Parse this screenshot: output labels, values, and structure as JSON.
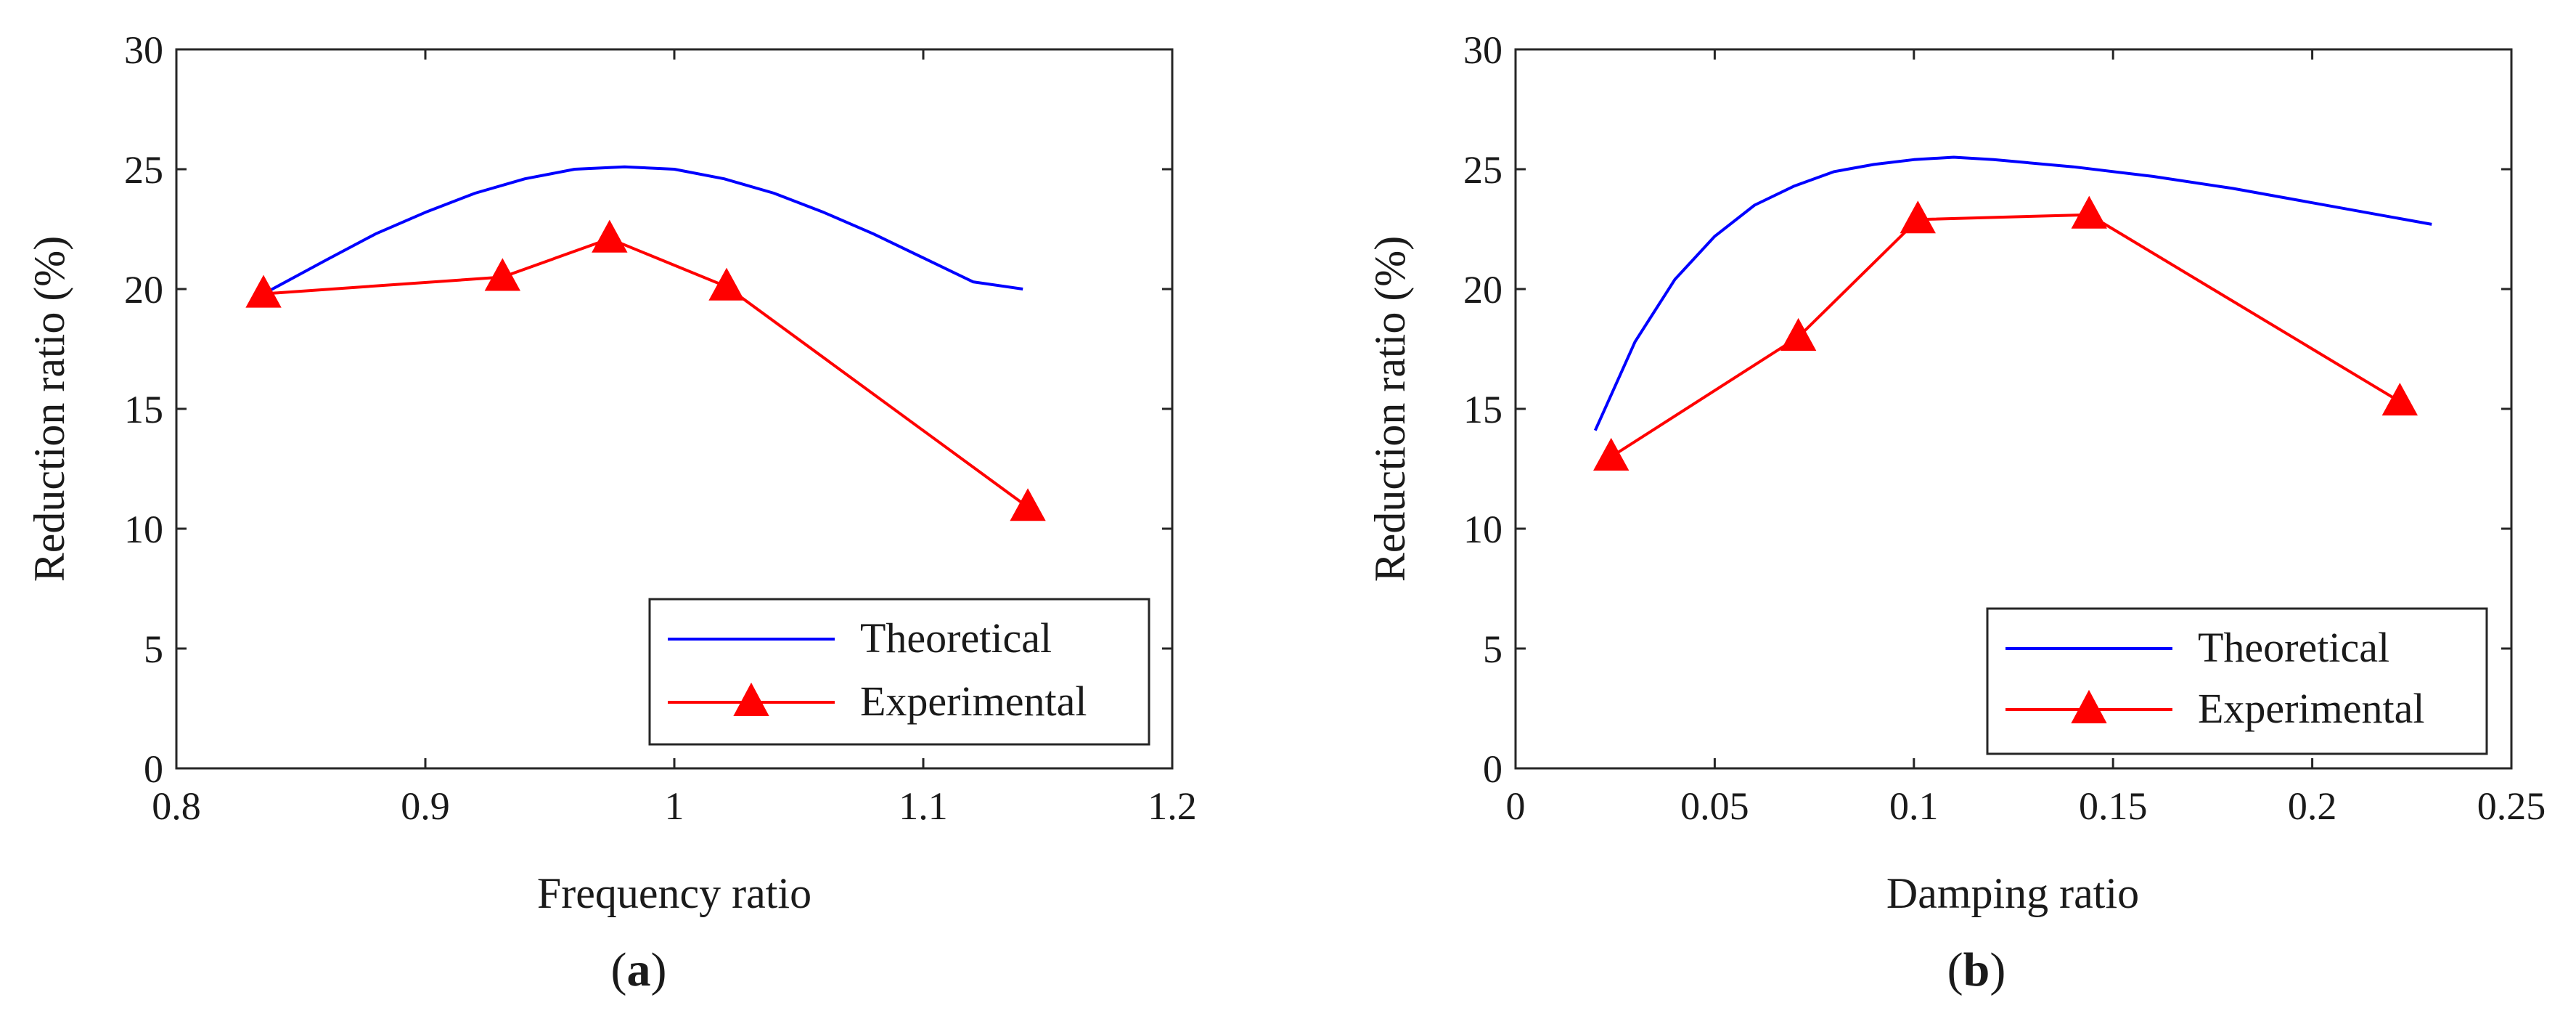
{
  "colors": {
    "theoretical": "#0000ff",
    "experimental": "#ff0000",
    "axis": "#262626"
  },
  "panels": [
    {
      "label_open": "(",
      "label_letter": "a",
      "label_close": ")"
    },
    {
      "label_open": "(",
      "label_letter": "b",
      "label_close": ")"
    }
  ],
  "chart_data": [
    {
      "type": "line",
      "title": "",
      "xlabel": "Frequency ratio",
      "ylabel": "Reduction ratio (%)",
      "xlim": [
        0.8,
        1.2
      ],
      "ylim": [
        0,
        30
      ],
      "xticks": [
        0.8,
        0.9,
        1,
        1.1,
        1.2
      ],
      "xtick_labels": [
        "0.8",
        "0.9",
        "1",
        "1.1",
        "1.2"
      ],
      "yticks": [
        0,
        5,
        10,
        15,
        20,
        25,
        30
      ],
      "ytick_labels": [
        "0",
        "5",
        "10",
        "15",
        "20",
        "25",
        "30"
      ],
      "legend_position": "bottom-right",
      "series": [
        {
          "name": "Theoretical",
          "marker": "none",
          "x": [
            0.835,
            0.86,
            0.88,
            0.9,
            0.92,
            0.94,
            0.96,
            0.98,
            1.0,
            1.02,
            1.04,
            1.06,
            1.08,
            1.1,
            1.12,
            1.14
          ],
          "y": [
            19.8,
            21.2,
            22.3,
            23.2,
            24.0,
            24.6,
            25.0,
            25.1,
            25.0,
            24.6,
            24.0,
            23.2,
            22.3,
            21.3,
            20.3,
            20.0
          ]
        },
        {
          "name": "Experimental",
          "marker": "triangle",
          "x": [
            0.835,
            0.931,
            0.974,
            1.021,
            1.142
          ],
          "y": [
            19.8,
            20.5,
            22.1,
            20.1,
            10.9
          ]
        }
      ]
    },
    {
      "type": "line",
      "title": "",
      "xlabel": "Damping ratio",
      "ylabel": "Reduction ratio (%)",
      "xlim": [
        0,
        0.25
      ],
      "ylim": [
        0,
        30
      ],
      "xticks": [
        0,
        0.05,
        0.1,
        0.15,
        0.2,
        0.25
      ],
      "xtick_labels": [
        "0",
        "0.05",
        "0.1",
        "0.15",
        "0.2",
        "0.25"
      ],
      "yticks": [
        0,
        5,
        10,
        15,
        20,
        25,
        30
      ],
      "ytick_labels": [
        "0",
        "5",
        "10",
        "15",
        "20",
        "25",
        "30"
      ],
      "legend_position": "bottom-right",
      "series": [
        {
          "name": "Theoretical",
          "marker": "none",
          "x": [
            0.02,
            0.03,
            0.04,
            0.05,
            0.06,
            0.07,
            0.08,
            0.09,
            0.1,
            0.11,
            0.12,
            0.14,
            0.16,
            0.18,
            0.2,
            0.23
          ],
          "y": [
            14.1,
            17.8,
            20.4,
            22.2,
            23.5,
            24.3,
            24.9,
            25.2,
            25.4,
            25.5,
            25.4,
            25.1,
            24.7,
            24.2,
            23.6,
            22.7
          ]
        },
        {
          "name": "Experimental",
          "marker": "triangle",
          "x": [
            0.024,
            0.071,
            0.101,
            0.144,
            0.222
          ],
          "y": [
            13.0,
            18.0,
            22.9,
            23.1,
            15.3
          ]
        }
      ]
    }
  ]
}
